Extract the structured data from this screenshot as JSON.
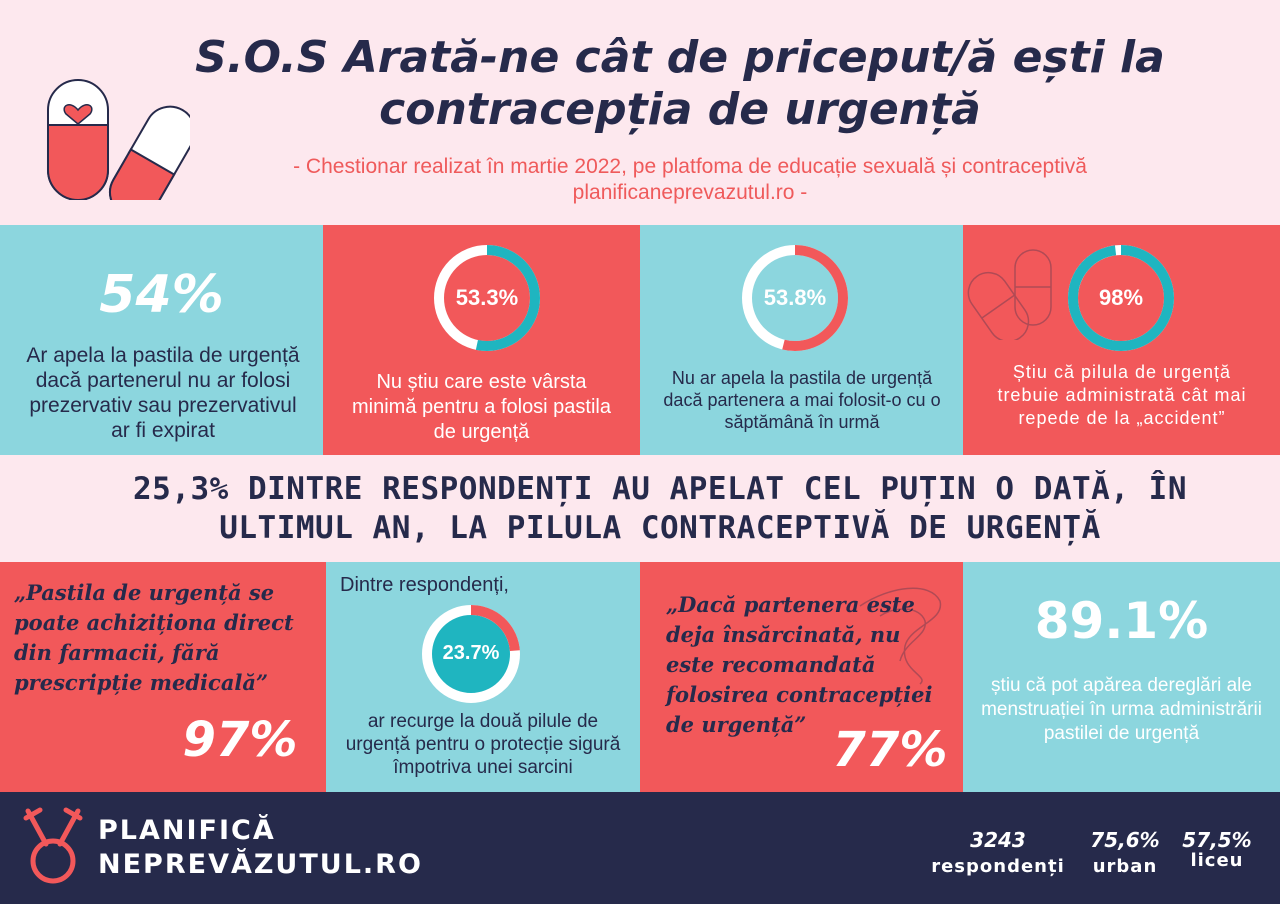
{
  "header": {
    "title": "S.O.S Arată-ne cât de priceput/ă ești la contracepția de urgență",
    "subtitle": "- Chestionar realizat în martie 2022,  pe platfoma de educație sexuală și contraceptivă planificaneprevazutul.ro -"
  },
  "top_stats": [
    {
      "value": "54%",
      "text": "Ar apela la pastila de urgență dacă partenerul nu ar folosi prezervativ sau prezervativul ar fi expirat"
    },
    {
      "value": "53.3%",
      "fraction": 0.533,
      "text": "Nu știu care este vârsta minimă pentru a folosi pastila de urgență"
    },
    {
      "value": "53.8%",
      "fraction": 0.538,
      "text": "Nu ar apela la pastila de urgență dacă partenera a mai folosit-o cu o săptămână în urmă"
    },
    {
      "value": "98%",
      "fraction": 0.98,
      "text": "Știu că pilula de urgență trebuie administrată cât mai repede de la „accident”"
    }
  ],
  "band": {
    "text": "25,3% DINTRE RESPONDENȚI AU APELAT CEL PUȚIN O DATĂ, ÎN ULTIMUL AN, LA PILULA CONTRACEPTIVĂ DE URGENȚĂ"
  },
  "bottom_stats": [
    {
      "quote": "„Pastila de urgență se poate achiziționa direct din farmacii, fără prescripție medicală”",
      "value": "97%"
    },
    {
      "intro": "Dintre respondenți,",
      "value": "23.7%",
      "fraction": 0.237,
      "text": "ar recurge la două pilule de urgență pentru o protecție sigură împotriva unei sarcini"
    },
    {
      "quote": "„Dacă partenera este deja însărcinată, nu este recomandată folosirea contracepției de urgență”",
      "value": "77%"
    },
    {
      "value": "89.1%",
      "text": "știu că pot apărea dereglări ale menstruației în urma administrării pastilei de urgență"
    }
  ],
  "footer": {
    "logo_line1": "PLANIFICĂ",
    "logo_line2": "NEPREVĂZUTUL.RO",
    "stats": [
      {
        "value": "3243",
        "label": "respondenți"
      },
      {
        "value": "75,6%",
        "label": "urban"
      },
      {
        "value": "57,5%",
        "label": "liceu"
      }
    ]
  },
  "colors": {
    "teal": "#8cd6de",
    "red": "#f2585a",
    "navy": "#262a4b",
    "pink": "#fde8ee",
    "ring_teal": "#1fb5c0"
  }
}
